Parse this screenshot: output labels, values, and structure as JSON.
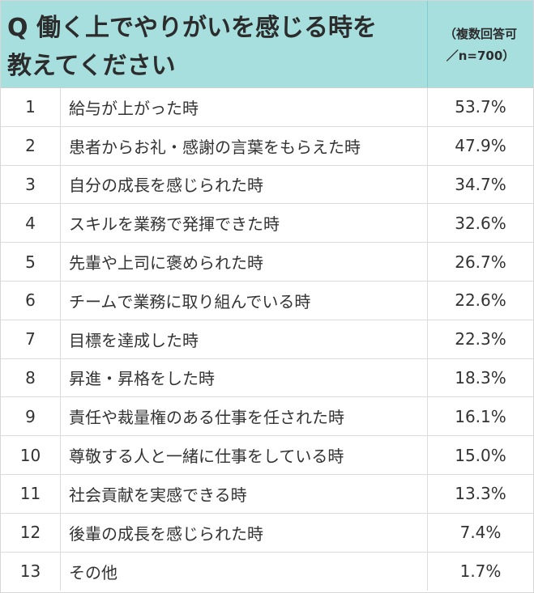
{
  "header": {
    "question_line1": "Q 働く上でやりがいを感じる時を",
    "question_line2": "教えてください",
    "note_line1": "（複数回答可",
    "note_line2": "／n=700）"
  },
  "rows": [
    {
      "rank": "1",
      "item": "給与が上がった時",
      "pct": "53.7%"
    },
    {
      "rank": "2",
      "item": "患者からお礼・感謝の言葉をもらえた時",
      "pct": "47.9%"
    },
    {
      "rank": "3",
      "item": "自分の成長を感じられた時",
      "pct": "34.7%"
    },
    {
      "rank": "4",
      "item": "スキルを業務で発揮できた時",
      "pct": "32.6%"
    },
    {
      "rank": "5",
      "item": "先輩や上司に褒められた時",
      "pct": "26.7%"
    },
    {
      "rank": "6",
      "item": "チームで業務に取り組んでいる時",
      "pct": "22.6%"
    },
    {
      "rank": "7",
      "item": "目標を達成した時",
      "pct": "22.3%"
    },
    {
      "rank": "8",
      "item": "昇進・昇格をした時",
      "pct": "18.3%"
    },
    {
      "rank": "9",
      "item": "責任や裁量権のある仕事を任された時",
      "pct": "16.1%"
    },
    {
      "rank": "10",
      "item": "尊敬する人と一緒に仕事をしている時",
      "pct": "15.0%"
    },
    {
      "rank": "11",
      "item": "社会貢献を実感できる時",
      "pct": "13.3%"
    },
    {
      "rank": "12",
      "item": "後輩の成長を感じられた時",
      "pct": "7.4%"
    },
    {
      "rank": "13",
      "item": "その他",
      "pct": "1.7%"
    }
  ]
}
